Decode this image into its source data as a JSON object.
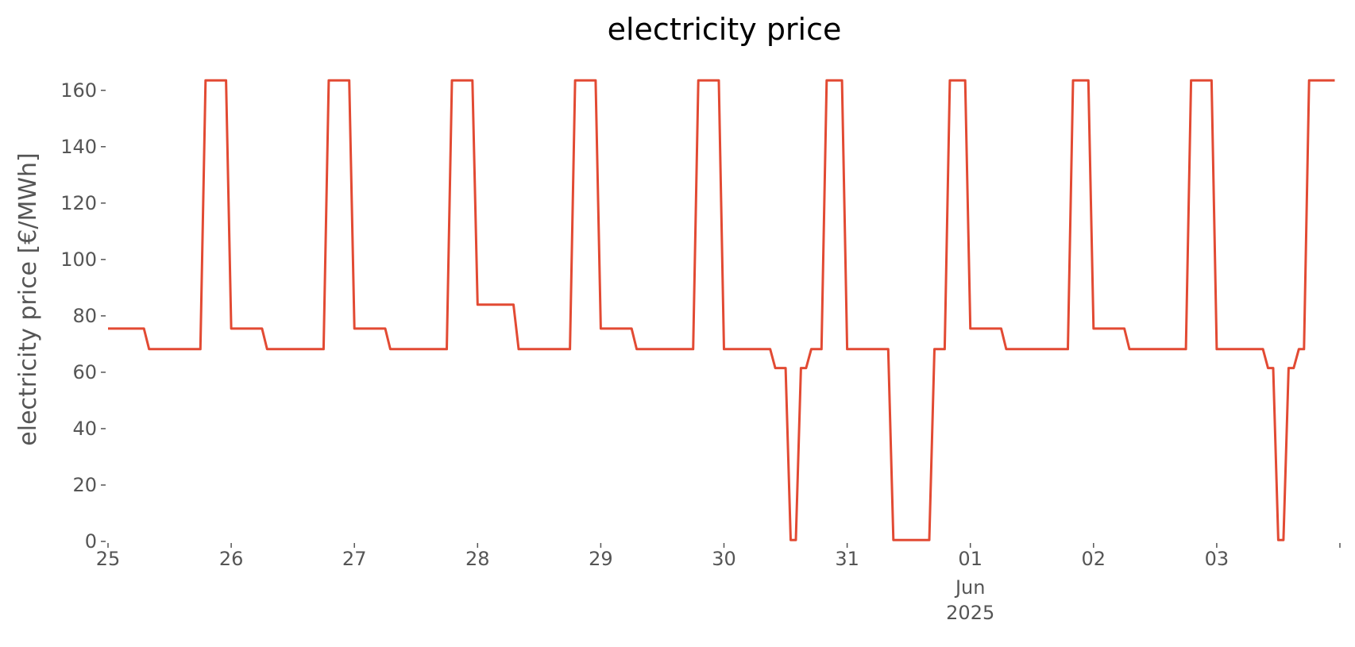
{
  "chart_data": {
    "type": "line",
    "title": "electricity price",
    "xlabel": "",
    "ylabel": "electricity price [€/MWh]",
    "ylim": [
      0,
      165
    ],
    "xlim": [
      "2025-05-25 00:00",
      "2025-06-03 23:00"
    ],
    "grid": false,
    "line_color": "#E24A33",
    "x_ticks": [
      {
        "date": "2025-05-25",
        "label": "25"
      },
      {
        "date": "2025-05-26",
        "label": "26"
      },
      {
        "date": "2025-05-27",
        "label": "27"
      },
      {
        "date": "2025-05-28",
        "label": "28"
      },
      {
        "date": "2025-05-29",
        "label": "29"
      },
      {
        "date": "2025-05-30",
        "label": "30"
      },
      {
        "date": "2025-05-31",
        "label": "31"
      },
      {
        "date": "2025-06-01",
        "label": "01",
        "sublabel": "Jun",
        "sublabel2": "2025"
      },
      {
        "date": "2025-06-02",
        "label": "02"
      },
      {
        "date": "2025-06-03",
        "label": "03"
      },
      {
        "date": "2025-06-04",
        "label": ""
      }
    ],
    "y_ticks": [
      {
        "value": 0,
        "label": "0"
      },
      {
        "value": 20,
        "label": "20"
      },
      {
        "value": 40,
        "label": "40"
      },
      {
        "value": 60,
        "label": "60"
      },
      {
        "value": 80,
        "label": "80"
      },
      {
        "value": 100,
        "label": "100"
      },
      {
        "value": 120,
        "label": "120"
      },
      {
        "value": 140,
        "label": "140"
      },
      {
        "value": 160,
        "label": "160"
      }
    ],
    "series": [
      {
        "x": [
          "2025-05-25 00:00",
          "2025-05-25 07:00",
          "2025-05-25 08:00",
          "2025-05-25 18:00",
          "2025-05-25 19:00",
          "2025-05-25 23:00",
          "2025-05-26 00:00",
          "2025-05-26 06:00",
          "2025-05-26 07:00",
          "2025-05-26 18:00",
          "2025-05-26 19:00",
          "2025-05-26 23:00",
          "2025-05-27 00:00",
          "2025-05-27 06:00",
          "2025-05-27 07:00",
          "2025-05-27 18:00",
          "2025-05-27 19:00",
          "2025-05-27 23:00",
          "2025-05-28 00:00",
          "2025-05-28 07:00",
          "2025-05-28 08:00",
          "2025-05-28 18:00",
          "2025-05-28 19:00",
          "2025-05-28 23:00",
          "2025-05-29 00:00",
          "2025-05-29 06:00",
          "2025-05-29 07:00",
          "2025-05-29 18:00",
          "2025-05-29 19:00",
          "2025-05-29 23:00",
          "2025-05-30 00:00",
          "2025-05-30 09:00",
          "2025-05-30 10:00",
          "2025-05-30 12:00",
          "2025-05-30 13:00",
          "2025-05-30 14:00",
          "2025-05-30 15:00",
          "2025-05-30 16:00",
          "2025-05-30 17:00",
          "2025-05-30 19:00",
          "2025-05-30 20:00",
          "2025-05-30 23:00",
          "2025-05-31 00:00",
          "2025-05-31 08:00",
          "2025-05-31 09:00",
          "2025-05-31 16:00",
          "2025-05-31 17:00",
          "2025-05-31 19:00",
          "2025-05-31 20:00",
          "2025-05-31 23:00",
          "2025-06-01 00:00",
          "2025-06-01 06:00",
          "2025-06-01 07:00",
          "2025-06-01 19:00",
          "2025-06-01 20:00",
          "2025-06-01 23:00",
          "2025-06-02 00:00",
          "2025-06-02 06:00",
          "2025-06-02 07:00",
          "2025-06-02 18:00",
          "2025-06-02 19:00",
          "2025-06-02 23:00",
          "2025-06-03 00:00",
          "2025-06-03 09:00",
          "2025-06-03 10:00",
          "2025-06-03 11:00",
          "2025-06-03 12:00",
          "2025-06-03 13:00",
          "2025-06-03 14:00",
          "2025-06-03 15:00",
          "2025-06-03 16:00",
          "2025-06-03 17:00",
          "2025-06-03 18:00",
          "2025-06-03 19:00",
          "2025-06-03 23:00"
        ],
        "y": [
          75.5,
          75.5,
          68.2,
          68.2,
          163.5,
          163.5,
          75.5,
          75.5,
          68.2,
          68.2,
          163.5,
          163.5,
          75.5,
          75.5,
          68.2,
          68.2,
          163.5,
          163.5,
          84,
          84,
          68.2,
          68.2,
          163.5,
          163.5,
          75.5,
          75.5,
          68.2,
          68.2,
          163.5,
          163.5,
          68.2,
          68.2,
          61.5,
          61.5,
          0.5,
          0.5,
          61.5,
          61.5,
          68.2,
          68.2,
          163.5,
          163.5,
          68.2,
          68.2,
          0.5,
          0.5,
          68.2,
          68.2,
          163.5,
          163.5,
          75.5,
          75.5,
          68.2,
          68.2,
          163.5,
          163.5,
          75.5,
          75.5,
          68.2,
          68.2,
          163.5,
          163.5,
          68.2,
          68.2,
          61.5,
          61.5,
          0.5,
          0.5,
          61.5,
          61.5,
          68.2,
          68.2,
          163.5,
          163.5,
          163.5
        ]
      }
    ]
  }
}
